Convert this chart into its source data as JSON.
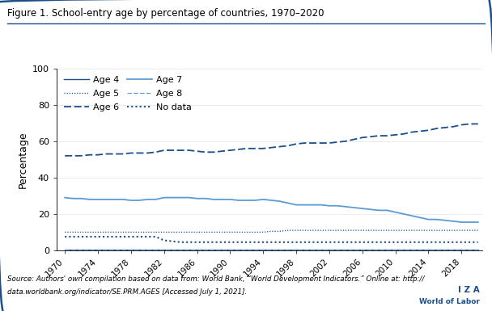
{
  "title": "Figure 1. School-entry age by percentage of countries, 1970–2020",
  "ylabel": "Percentage",
  "source_line1": "Source: Authors' own compilation based on data from: World Bank, “World Development Indicators.” Online at: http://",
  "source_line2": "data.worldbank.org/indicator/SE.PRM.AGES [Accessed July 1, 2021].",
  "iza_line1": "I Z A",
  "iza_line2": "World of Labor",
  "ylim": [
    0,
    100
  ],
  "yticks": [
    0,
    20,
    40,
    60,
    80,
    100
  ],
  "xticks": [
    1970,
    1974,
    1978,
    1982,
    1986,
    1990,
    1994,
    1998,
    2002,
    2006,
    2010,
    2014,
    2018
  ],
  "color_dark": "#1a4f8a",
  "color_light": "#5b9bd5",
  "years": [
    1970,
    1971,
    1972,
    1973,
    1974,
    1975,
    1976,
    1977,
    1978,
    1979,
    1980,
    1981,
    1982,
    1983,
    1984,
    1985,
    1986,
    1987,
    1988,
    1989,
    1990,
    1991,
    1992,
    1993,
    1994,
    1995,
    1996,
    1997,
    1998,
    1999,
    2000,
    2001,
    2002,
    2003,
    2004,
    2005,
    2006,
    2007,
    2008,
    2009,
    2010,
    2011,
    2012,
    2013,
    2014,
    2015,
    2016,
    2017,
    2018,
    2019,
    2020
  ],
  "age4": [
    0.5,
    0.5,
    0.5,
    0.5,
    0.5,
    0.5,
    0.5,
    0.5,
    0.5,
    0.5,
    0.5,
    0.5,
    0.5,
    0.5,
    0.5,
    0.5,
    0.5,
    0.5,
    0.5,
    0.5,
    0.5,
    0.5,
    0.5,
    0.5,
    0.5,
    0.5,
    0.5,
    0.5,
    0.5,
    0.5,
    0.5,
    0.5,
    0.5,
    0.5,
    0.5,
    0.5,
    0.5,
    0.5,
    0.5,
    0.5,
    0.5,
    0.5,
    0.5,
    0.5,
    0.5,
    0.5,
    0.5,
    0.5,
    0.5,
    0.5,
    0.5
  ],
  "age5": [
    10,
    10,
    10,
    10,
    10,
    10,
    10,
    10,
    10,
    10,
    10,
    10,
    10,
    10,
    10,
    10,
    10,
    10,
    10,
    10,
    10,
    10,
    10,
    10,
    10,
    10.5,
    10.5,
    11,
    11,
    11,
    11,
    11,
    11,
    11,
    11,
    11,
    11,
    11,
    11,
    11,
    11,
    11,
    11,
    11,
    11,
    11,
    11,
    11,
    11,
    11,
    11
  ],
  "age6": [
    52,
    52,
    52,
    52.5,
    52.5,
    53,
    53,
    53,
    53.5,
    53.5,
    53.5,
    54,
    55,
    55,
    55,
    55,
    54.5,
    54,
    54,
    54.5,
    55,
    55.5,
    56,
    56,
    56,
    56.5,
    57,
    57.5,
    58.5,
    59,
    59,
    59,
    59,
    59.5,
    60,
    61,
    62,
    62.5,
    63,
    63,
    63.5,
    64,
    65,
    65.5,
    66,
    67,
    67.5,
    68,
    69,
    69.5,
    69.5
  ],
  "age7": [
    29,
    28.5,
    28.5,
    28,
    28,
    28,
    28,
    28,
    27.5,
    27.5,
    28,
    28,
    29,
    29,
    29,
    29,
    28.5,
    28.5,
    28,
    28,
    28,
    27.5,
    27.5,
    27.5,
    28,
    27.5,
    27,
    26,
    25,
    25,
    25,
    25,
    24.5,
    24.5,
    24,
    23.5,
    23,
    22.5,
    22,
    22,
    21,
    20,
    19,
    18,
    17,
    17,
    16.5,
    16,
    15.5,
    15.5,
    15.5
  ],
  "age8": [
    0.5,
    0.5,
    0.5,
    0.5,
    0.5,
    0.5,
    0.5,
    0.5,
    0.5,
    0.5,
    0.5,
    0.5,
    0.5,
    0.5,
    0.5,
    0.5,
    0.5,
    0.5,
    0.5,
    0.5,
    0.5,
    0.5,
    0.5,
    0.5,
    0.5,
    0.5,
    0.5,
    0.5,
    0.5,
    0.5,
    0.5,
    0.5,
    0.5,
    0.5,
    0.5,
    0.5,
    0.5,
    0.5,
    0.5,
    0.5,
    0.5,
    0.5,
    0.5,
    0.5,
    0.5,
    0.5,
    0.5,
    0.5,
    0.5,
    0.5,
    0.5
  ],
  "nodata": [
    7.5,
    7.5,
    7.5,
    7.5,
    7.5,
    7.5,
    7.5,
    7.5,
    7.5,
    7.5,
    7.5,
    7.5,
    5.5,
    5.0,
    4.5,
    4.5,
    4.5,
    4.5,
    4.5,
    4.5,
    4.5,
    4.5,
    4.5,
    4.5,
    4.5,
    4.5,
    4.5,
    4.5,
    4.5,
    4.5,
    4.5,
    4.5,
    4.5,
    4.5,
    4.5,
    4.5,
    4.5,
    4.5,
    4.5,
    4.5,
    4.5,
    4.5,
    4.5,
    4.5,
    4.5,
    4.5,
    4.5,
    4.5,
    4.5,
    4.5,
    4.5
  ]
}
